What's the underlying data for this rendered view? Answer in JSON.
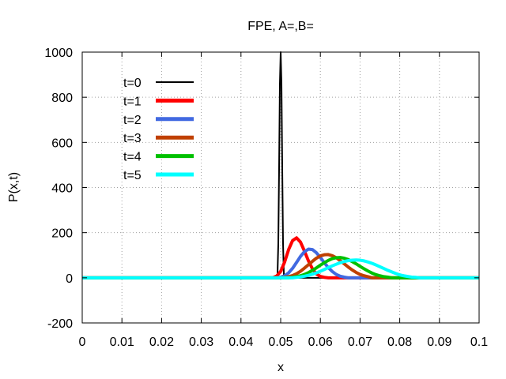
{
  "chart_data": {
    "type": "line",
    "title": "FPE, A=,B=",
    "xlabel": "x",
    "ylabel": "P(x,t)",
    "xlim": [
      0,
      0.1
    ],
    "ylim": [
      -200,
      1000
    ],
    "xticks": [
      0,
      0.01,
      0.02,
      0.03,
      0.04,
      0.05,
      0.06,
      0.07,
      0.08,
      0.09,
      0.1
    ],
    "xtick_labels": [
      "0",
      "0.01",
      "0.02",
      "0.03",
      "0.04",
      "0.05",
      "0.06",
      "0.07",
      "0.08",
      "0.09",
      "0.1"
    ],
    "yticks": [
      -200,
      0,
      200,
      400,
      600,
      800,
      1000
    ],
    "ytick_labels": [
      "-200",
      "0",
      "200",
      "400",
      "600",
      "800",
      "1000"
    ],
    "grid": true,
    "legend_position": "top-left",
    "series": [
      {
        "name": "t=0",
        "color": "#000000",
        "x": [
          0,
          0.049,
          0.0492,
          0.0494,
          0.0496,
          0.0498,
          0.05,
          0.0502,
          0.0504,
          0.0506,
          0.0508,
          0.051,
          0.1
        ],
        "y": [
          0,
          0,
          15,
          150,
          480,
          860,
          1000,
          860,
          480,
          150,
          15,
          0,
          0
        ]
      },
      {
        "name": "t=1",
        "color": "#ff0000",
        "x": [
          0,
          0.048,
          0.049,
          0.05,
          0.051,
          0.052,
          0.053,
          0.054,
          0.055,
          0.056,
          0.057,
          0.058,
          0.059,
          0.06,
          0.061,
          0.062,
          0.1
        ],
        "y": [
          0,
          0,
          8,
          28,
          70,
          125,
          165,
          177,
          158,
          118,
          75,
          40,
          17,
          6,
          2,
          0,
          0
        ]
      },
      {
        "name": "t=2",
        "color": "#4169e1",
        "x": [
          0,
          0.049,
          0.05,
          0.051,
          0.052,
          0.053,
          0.054,
          0.055,
          0.056,
          0.057,
          0.058,
          0.059,
          0.06,
          0.061,
          0.062,
          0.063,
          0.064,
          0.065,
          0.066,
          0.067,
          0.1
        ],
        "y": [
          0,
          0,
          3,
          9,
          22,
          42,
          68,
          95,
          116,
          127,
          125,
          111,
          90,
          67,
          45,
          28,
          15,
          7,
          3,
          0,
          0
        ]
      },
      {
        "name": "t=3",
        "color": "#c04000",
        "x": [
          0,
          0.05,
          0.051,
          0.052,
          0.053,
          0.054,
          0.055,
          0.056,
          0.057,
          0.058,
          0.059,
          0.06,
          0.061,
          0.062,
          0.063,
          0.064,
          0.065,
          0.066,
          0.067,
          0.068,
          0.069,
          0.07,
          0.071,
          0.072,
          0.073,
          0.1
        ],
        "y": [
          0,
          0,
          2,
          5,
          10,
          18,
          29,
          43,
          58,
          73,
          87,
          97,
          102,
          103,
          98,
          89,
          76,
          62,
          48,
          35,
          24,
          15,
          9,
          5,
          0,
          0
        ]
      },
      {
        "name": "t=4",
        "color": "#00c000",
        "x": [
          0,
          0.052,
          0.053,
          0.054,
          0.055,
          0.056,
          0.057,
          0.058,
          0.059,
          0.06,
          0.061,
          0.062,
          0.063,
          0.064,
          0.065,
          0.066,
          0.067,
          0.068,
          0.069,
          0.07,
          0.071,
          0.072,
          0.073,
          0.074,
          0.075,
          0.076,
          0.077,
          0.078,
          0.1
        ],
        "y": [
          0,
          0,
          2,
          5,
          9,
          15,
          23,
          33,
          44,
          56,
          67,
          77,
          85,
          89,
          90,
          87,
          81,
          72,
          62,
          51,
          40,
          30,
          21,
          14,
          9,
          5,
          3,
          0,
          0
        ]
      },
      {
        "name": "t=5",
        "color": "#00ffff",
        "x": [
          0,
          0.053,
          0.054,
          0.055,
          0.056,
          0.057,
          0.058,
          0.059,
          0.06,
          0.061,
          0.062,
          0.063,
          0.064,
          0.065,
          0.066,
          0.067,
          0.068,
          0.069,
          0.07,
          0.071,
          0.072,
          0.073,
          0.074,
          0.075,
          0.076,
          0.077,
          0.078,
          0.079,
          0.08,
          0.081,
          0.082,
          0.083,
          0.084,
          0.085,
          0.1
        ],
        "y": [
          0,
          0,
          2,
          4,
          7,
          11,
          16,
          22,
          29,
          37,
          45,
          53,
          60,
          67,
          72,
          76,
          78,
          79,
          78,
          75,
          70,
          64,
          57,
          49,
          41,
          33,
          26,
          19,
          13,
          9,
          6,
          3,
          2,
          0,
          0
        ]
      }
    ]
  }
}
